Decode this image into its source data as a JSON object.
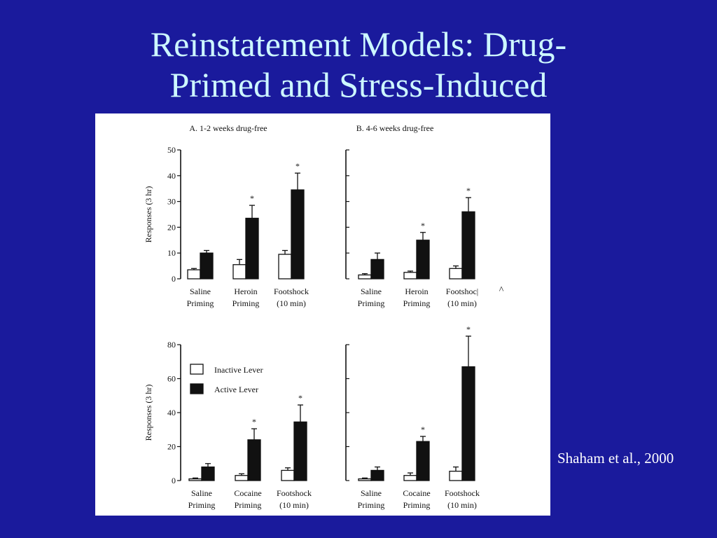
{
  "slide": {
    "title_line1": "Reinstatement Models: Drug-",
    "title_line2": "Primed and Stress-Induced",
    "citation": "Shaham et al., 2000",
    "background_color": "#1a1a9c",
    "title_color": "#cdf7ff"
  },
  "legend": {
    "inactive": "Inactive Lever",
    "active": "Active Lever"
  },
  "chart_data": [
    {
      "type": "bar",
      "title": "A. 1-2 weeks drug-free",
      "ylabel": "Responses (3 hr)",
      "ylim": [
        0,
        50
      ],
      "yticks": [
        0,
        10,
        20,
        30,
        40,
        50
      ],
      "categories": [
        "Saline\nPriming",
        "Heroin\nPriming",
        "Footshock\n(10 min)"
      ],
      "series": [
        {
          "name": "Inactive Lever",
          "values": [
            3.5,
            5.5,
            9.5
          ],
          "errors": [
            0.5,
            2,
            1.5
          ]
        },
        {
          "name": "Active Lever",
          "values": [
            10,
            23.5,
            34.5
          ],
          "errors": [
            1,
            5,
            6.5
          ]
        }
      ],
      "significance": [
        false,
        true,
        true
      ],
      "significance_mark": "*"
    },
    {
      "type": "bar",
      "title": "B. 4-6 weeks drug-free",
      "ylabel": "",
      "ylim": [
        0,
        50
      ],
      "yticks": [
        0,
        10,
        20,
        30,
        40,
        50
      ],
      "categories": [
        "Saline\nPriming",
        "Heroin\nPriming",
        "Footshoc|\n(10 min)"
      ],
      "series": [
        {
          "name": "Inactive Lever",
          "values": [
            1.5,
            2.5,
            4
          ],
          "errors": [
            0.5,
            0.5,
            1
          ]
        },
        {
          "name": "Active Lever",
          "values": [
            7.5,
            15,
            26
          ],
          "errors": [
            2.5,
            3,
            5.5
          ]
        }
      ],
      "significance": [
        false,
        true,
        true
      ],
      "significance_mark": "*",
      "annotation": "^"
    },
    {
      "type": "bar",
      "title": "",
      "ylabel": "Responses (3 hr)",
      "ylim": [
        0,
        80
      ],
      "yticks": [
        0,
        20,
        40,
        60,
        80
      ],
      "categories": [
        "Saline\nPriming",
        "Cocaine\nPriming",
        "Footshock\n(10 min)"
      ],
      "series": [
        {
          "name": "Inactive Lever",
          "values": [
            1,
            3,
            6
          ],
          "errors": [
            0.5,
            1,
            1.5
          ]
        },
        {
          "name": "Active Lever",
          "values": [
            8,
            24,
            34.5
          ],
          "errors": [
            2,
            6.5,
            10
          ]
        }
      ],
      "significance": [
        false,
        true,
        true
      ],
      "significance_mark": "*"
    },
    {
      "type": "bar",
      "title": "",
      "ylabel": "",
      "ylim": [
        0,
        80
      ],
      "yticks": [
        0,
        20,
        40,
        60,
        80
      ],
      "categories": [
        "Saline\nPriming",
        "Cocaine\nPriming",
        "Footshock\n(10 min)"
      ],
      "series": [
        {
          "name": "Inactive Lever",
          "values": [
            1,
            3,
            5.5
          ],
          "errors": [
            0.5,
            1.5,
            2.5
          ]
        },
        {
          "name": "Active Lever",
          "values": [
            6,
            23,
            67
          ],
          "errors": [
            2,
            3,
            18
          ]
        }
      ],
      "significance": [
        false,
        true,
        true
      ],
      "significance_mark": "*"
    }
  ]
}
